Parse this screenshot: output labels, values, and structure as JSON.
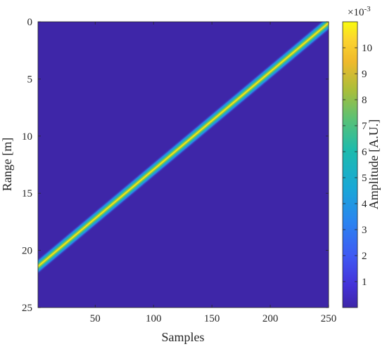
{
  "chart_data": {
    "type": "heatmap",
    "xlabel": "Samples",
    "ylabel": "Range [m]",
    "xlim": [
      1,
      250
    ],
    "ylim": [
      0,
      25
    ],
    "y_reversed": true,
    "x_ticks": [
      "50",
      "100",
      "150",
      "200",
      "250"
    ],
    "x_tick_values": [
      50,
      100,
      150,
      200,
      250
    ],
    "y_ticks": [
      "0",
      "5",
      "10",
      "15",
      "20",
      "25"
    ],
    "y_tick_values": [
      0,
      5,
      10,
      15,
      20,
      25
    ],
    "ridge": {
      "description_values": [
        {
          "sample": 1,
          "range_m": 21.4
        },
        {
          "sample": 250,
          "range_m": 0.1
        }
      ],
      "width_m": 0.8,
      "peak_amplitude": 0.0108
    },
    "background_amplitude": 0.0,
    "colorbar": {
      "label": "Amplitude [A.U.]",
      "exponent_label": "×10",
      "exponent_power": "-3",
      "range": [
        0,
        11
      ],
      "ticks": [
        "1",
        "2",
        "3",
        "4",
        "5",
        "6",
        "7",
        "8",
        "9",
        "10"
      ],
      "tick_values": [
        1,
        2,
        3,
        4,
        5,
        6,
        7,
        8,
        9,
        10
      ],
      "colormap": "parula"
    },
    "grid": false,
    "colors": {
      "low": "#3e26a8",
      "mid": "#17becf",
      "high": "#f9fb0e"
    }
  }
}
